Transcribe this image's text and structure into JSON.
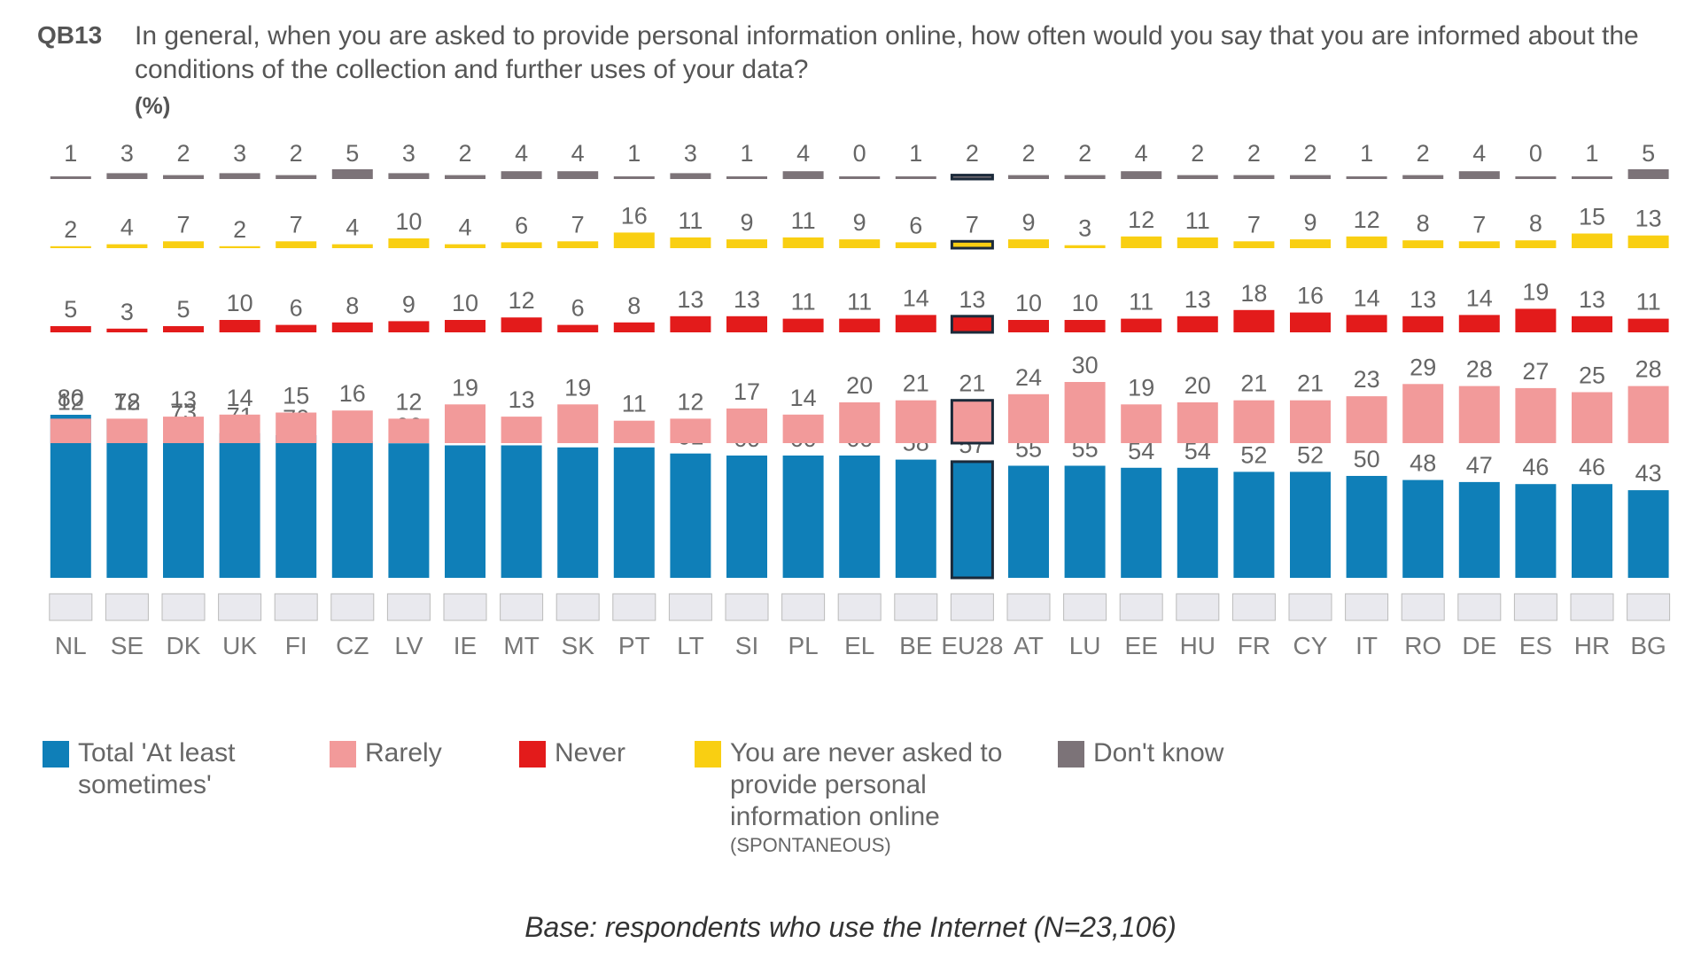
{
  "header": {
    "code": "QB13",
    "question": "In general, when you are asked to provide personal information online, how often would you say that you are informed about the conditions of the collection and further uses of your data?",
    "unit": "(%)"
  },
  "chart_data": {
    "type": "bar",
    "categories": [
      "NL",
      "SE",
      "DK",
      "UK",
      "FI",
      "CZ",
      "LV",
      "IE",
      "MT",
      "SK",
      "PT",
      "LT",
      "SI",
      "PL",
      "EL",
      "BE",
      "EU28",
      "AT",
      "LU",
      "EE",
      "HU",
      "FR",
      "CY",
      "IT",
      "RO",
      "DE",
      "ES",
      "HR",
      "BG"
    ],
    "highlight": "EU28",
    "series": [
      {
        "name": "Total 'At least sometimes'",
        "color": "#0f7fb8",
        "values": [
          80,
          78,
          73,
          71,
          70,
          67,
          66,
          65,
          65,
          64,
          64,
          61,
          60,
          60,
          60,
          58,
          57,
          55,
          55,
          54,
          54,
          52,
          52,
          50,
          48,
          47,
          46,
          46,
          43
        ]
      },
      {
        "name": "Rarely",
        "color": "#f29a9a",
        "values": [
          12,
          12,
          13,
          14,
          15,
          16,
          12,
          19,
          13,
          19,
          11,
          12,
          17,
          14,
          20,
          21,
          21,
          24,
          30,
          19,
          20,
          21,
          21,
          23,
          29,
          28,
          27,
          25,
          28
        ]
      },
      {
        "name": "Never",
        "color": "#e31b1b",
        "values": [
          5,
          3,
          5,
          10,
          6,
          8,
          9,
          10,
          12,
          6,
          8,
          13,
          13,
          11,
          11,
          14,
          13,
          10,
          10,
          11,
          13,
          18,
          16,
          14,
          13,
          14,
          19,
          13,
          11
        ]
      },
      {
        "name": "You are never asked to provide personal information online",
        "color": "#f9cf12",
        "values": [
          2,
          4,
          7,
          2,
          7,
          4,
          10,
          4,
          6,
          7,
          16,
          11,
          9,
          11,
          9,
          6,
          7,
          9,
          3,
          12,
          11,
          7,
          9,
          12,
          8,
          7,
          8,
          15,
          13
        ]
      },
      {
        "name": "Don't know",
        "color": "#7c7378",
        "values": [
          1,
          3,
          2,
          3,
          2,
          5,
          3,
          2,
          4,
          4,
          1,
          3,
          1,
          4,
          0,
          1,
          2,
          2,
          2,
          4,
          2,
          2,
          2,
          1,
          2,
          4,
          0,
          1,
          5
        ]
      }
    ],
    "legend": [
      {
        "label": "Total 'At least sometimes'",
        "color": "#0f7fb8"
      },
      {
        "label": "Rarely",
        "color": "#f29a9a"
      },
      {
        "label": "Never",
        "color": "#e31b1b"
      },
      {
        "label": "You are never asked to provide personal information online",
        "note": "(SPONTANEOUS)",
        "color": "#f9cf12"
      },
      {
        "label": "Don't know",
        "color": "#7c7378"
      }
    ],
    "legend_position": "bottom",
    "grid": false
  },
  "footer": {
    "base": "Base: respondents who use the Internet (N=23,106)"
  }
}
